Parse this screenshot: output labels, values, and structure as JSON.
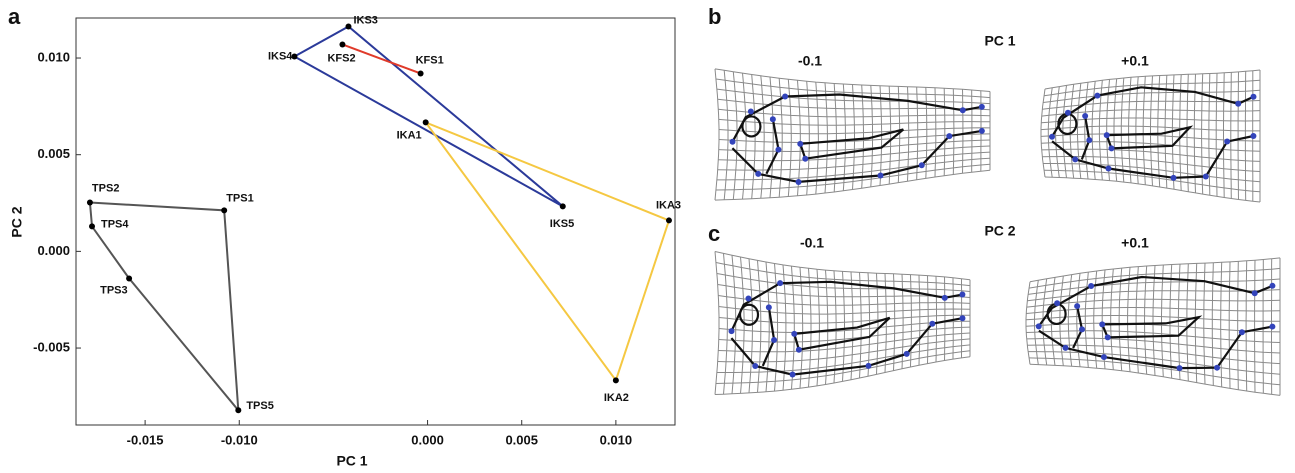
{
  "chart_data": {
    "type": "scatter",
    "panel_label": "a",
    "xlabel": "PC 1",
    "ylabel": "PC 2",
    "xlim": [
      -0.01867,
      0.01314
    ],
    "ylim": [
      -0.00898,
      0.01207
    ],
    "xticks": [
      {
        "value": -0.015,
        "label": "-0.015"
      },
      {
        "value": -0.01,
        "label": "-0.010"
      },
      {
        "value": 0,
        "label": "0.000"
      },
      {
        "value": 0.005,
        "label": "0.005"
      },
      {
        "value": 0.01,
        "label": "0.010"
      }
    ],
    "yticks": [
      {
        "value": -0.005,
        "label": "-0.005"
      },
      {
        "value": 0,
        "label": "0.000"
      },
      {
        "value": 0.005,
        "label": "0.005"
      },
      {
        "value": 0.01,
        "label": "0.010"
      }
    ],
    "grid": false,
    "series": [
      {
        "color": "#555555",
        "closed": true,
        "labels": [
          "TPS2",
          "TPS1",
          "TPS5",
          "TPS3",
          "TPS4"
        ],
        "x": [
          -0.01793,
          -0.0108,
          -0.01005,
          -0.01585,
          -0.01782
        ],
        "values": [
          0.00253,
          0.00212,
          -0.00822,
          -0.0014,
          0.00129
        ]
      },
      {
        "color": "#2b3a9a",
        "closed": true,
        "labels": [
          "IKS4",
          "IKS3",
          "IKS5"
        ],
        "x": [
          -0.00707,
          -0.0042,
          0.00718
        ],
        "values": [
          0.01008,
          0.01163,
          0.00233
        ]
      },
      {
        "color": "#e03a2a",
        "closed": false,
        "labels": [
          "KFS2",
          "KFS1"
        ],
        "x": [
          -0.00452,
          -0.00037
        ],
        "values": [
          0.0107,
          0.0092
        ]
      },
      {
        "color": "#f5c842",
        "closed": true,
        "labels": [
          "IKA1",
          "IKA3",
          "IKA2"
        ],
        "x": [
          -0.0001,
          0.01282,
          0.01
        ],
        "values": [
          0.00667,
          0.0016,
          -0.00667
        ]
      }
    ]
  },
  "panels": [
    {
      "label": "b",
      "title": "PC 1",
      "left": "-0.1",
      "right": "+0.1"
    },
    {
      "label": "c",
      "title": "PC 2",
      "left": "-0.1",
      "right": "+0.1"
    }
  ]
}
